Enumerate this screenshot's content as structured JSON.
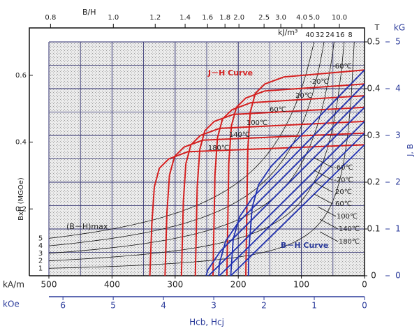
{
  "chart_data": {
    "type": "line",
    "x_label": "Hcb, Hcj",
    "x_unit": "kA/m",
    "xlim": [
      500,
      0
    ],
    "xticks": [
      500,
      400,
      300,
      200,
      100,
      0
    ],
    "minor_xticks": [
      450,
      350,
      250,
      150,
      50
    ],
    "x2_unit": "kOe",
    "x2lim": [
      6.28,
      0
    ],
    "x2ticks": [
      6,
      5,
      4,
      3,
      2,
      1,
      0
    ],
    "y_label": "J, B",
    "y_unit": "T",
    "ylim": [
      0,
      0.5
    ],
    "yticks": [
      0,
      0.1,
      0.2,
      0.3,
      0.4,
      0.5
    ],
    "minor_yticks": [
      0.05,
      0.15,
      0.25,
      0.35,
      0.45
    ],
    "y2_unit": "kG",
    "y2lim": [
      0,
      5
    ],
    "y2ticks": [
      0,
      1,
      2,
      3,
      4,
      5
    ],
    "y3lim": [
      0,
      0.7
    ],
    "y3ticks": [
      0.2,
      0.4,
      0.6
    ],
    "top_axis": {
      "label": "B/H",
      "ticks": [
        0.8,
        {
          "value": 1,
          "label": "1.0"
        },
        1.2,
        1.4,
        1.6,
        1.8,
        {
          "value": 2,
          "label": "2.0"
        },
        2.5,
        {
          "value": 3,
          "label": "3.0"
        },
        {
          "value": 4,
          "label": "4.0"
        },
        {
          "value": 5,
          "label": "5.0"
        },
        {
          "value": 10,
          "label": "10.0"
        }
      ]
    },
    "bh": {
      "label": "(B－H)max",
      "axis_label": "BxH (MGOe)",
      "unit": "kJ/m³",
      "values": [
        40,
        32,
        24,
        16,
        8
      ],
      "mgoe": [
        5,
        4,
        3,
        2,
        1
      ]
    },
    "j_curves": {
      "label": "J－H Curve",
      "color": "#d42020",
      "series": [
        {
          "name": "-60℃",
          "x": [
            0,
            128,
            158,
            173,
            181,
            185,
            188
          ],
          "values": [
            0.44,
            0.425,
            0.41,
            0.39,
            0.35,
            0.27,
            0
          ]
        },
        {
          "name": "-20℃",
          "x": [
            0,
            158,
            188,
            203,
            211,
            215,
            218
          ],
          "values": [
            0.41,
            0.395,
            0.38,
            0.36,
            0.32,
            0.24,
            0
          ]
        },
        {
          "name": "20℃",
          "x": [
            0,
            180,
            210,
            225,
            233,
            237,
            240
          ],
          "values": [
            0.385,
            0.37,
            0.355,
            0.335,
            0.295,
            0.215,
            0
          ]
        },
        {
          "name": "60℃",
          "x": [
            0,
            208,
            238,
            253,
            261,
            265,
            268
          ],
          "values": [
            0.36,
            0.345,
            0.33,
            0.31,
            0.27,
            0.19,
            0
          ]
        },
        {
          "name": "100℃",
          "x": [
            0,
            230,
            260,
            275,
            283,
            287,
            290
          ],
          "values": [
            0.33,
            0.315,
            0.3,
            0.28,
            0.24,
            0.16,
            0
          ]
        },
        {
          "name": "140℃",
          "x": [
            0,
            256,
            286,
            301,
            309,
            313,
            316
          ],
          "values": [
            0.305,
            0.29,
            0.275,
            0.255,
            0.215,
            0.135,
            0
          ]
        },
        {
          "name": "180℃",
          "x": [
            0,
            280,
            310,
            325,
            333,
            337,
            340
          ],
          "values": [
            0.28,
            0.265,
            0.25,
            0.23,
            0.19,
            0.11,
            0
          ]
        }
      ]
    },
    "b_curves": {
      "label": "B－H Curve",
      "color": "#2030b0",
      "series": [
        {
          "name": "-60℃",
          "x": [
            0,
            148,
            168,
            178,
            183,
            184
          ],
          "values": [
            0.44,
            0.234,
            0.194,
            0.146,
            0.06,
            0
          ]
        },
        {
          "name": "-20℃",
          "x": [
            0,
            178,
            198,
            208,
            212
          ],
          "values": [
            0.41,
            0.166,
            0.126,
            0.079,
            0
          ]
        },
        {
          "name": "20℃",
          "x": [
            0,
            200,
            220,
            230,
            231
          ],
          "values": [
            0.385,
            0.114,
            0.074,
            0.026,
            0
          ]
        },
        {
          "name": "60℃",
          "x": [
            0,
            228,
            248,
            251
          ],
          "values": [
            0.36,
            0.053,
            0.013,
            0
          ]
        },
        {
          "name": "100℃",
          "x": [
            0,
            247
          ],
          "values": [
            0.33,
            0
          ]
        },
        {
          "name": "140℃",
          "x": [
            0,
            230
          ],
          "values": [
            0.305,
            0
          ]
        },
        {
          "name": "180℃",
          "x": [
            0,
            212
          ],
          "values": [
            0.28,
            0
          ]
        }
      ]
    }
  }
}
